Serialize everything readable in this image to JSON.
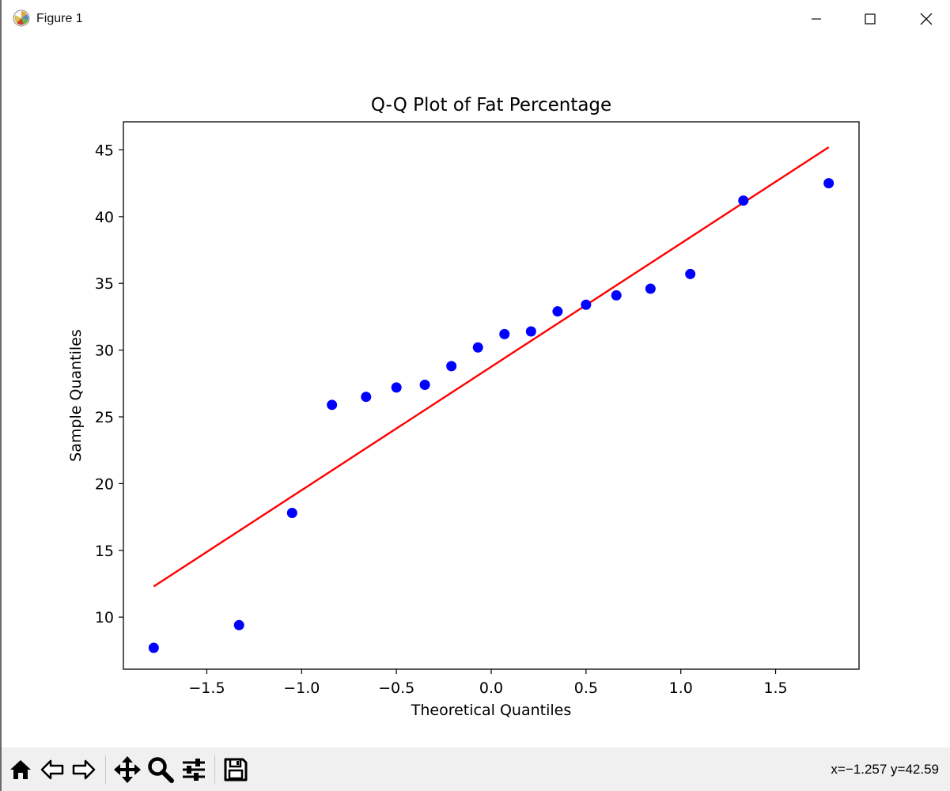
{
  "window": {
    "title": "Figure 1",
    "controls": {
      "minimize": "minimize-icon",
      "maximize": "maximize-icon",
      "close": "close-icon"
    }
  },
  "toolbar": {
    "buttons": [
      {
        "name": "home",
        "icon": "home-icon"
      },
      {
        "name": "back",
        "icon": "back-arrow-icon"
      },
      {
        "name": "forward",
        "icon": "forward-arrow-icon"
      },
      {
        "name": "pan",
        "icon": "move-icon"
      },
      {
        "name": "zoom",
        "icon": "zoom-icon"
      },
      {
        "name": "configure-subplots",
        "icon": "sliders-icon"
      },
      {
        "name": "save",
        "icon": "save-icon"
      }
    ],
    "coordinates": "x=−1.257 y=42.59"
  },
  "chart_data": {
    "type": "scatter",
    "title": "Q-Q Plot of Fat Percentage",
    "xlabel": "Theoretical Quantiles",
    "ylabel": "Sample Quantiles",
    "xlim": [
      -1.94,
      1.94
    ],
    "ylim": [
      6.1,
      47.1
    ],
    "xticks": [
      -1.5,
      -1.0,
      -0.5,
      0.0,
      0.5,
      1.0,
      1.5
    ],
    "xtick_labels": [
      "−1.5",
      "−1.0",
      "−0.5",
      "0.0",
      "0.5",
      "1.0",
      "1.5"
    ],
    "yticks": [
      10,
      15,
      20,
      25,
      30,
      35,
      40,
      45
    ],
    "ytick_labels": [
      "10",
      "15",
      "20",
      "25",
      "30",
      "35",
      "40",
      "45"
    ],
    "grid": false,
    "marker_color": "#0000ff",
    "line_color": "#ff0000",
    "points": [
      {
        "x": -1.78,
        "y": 7.7
      },
      {
        "x": -1.33,
        "y": 9.4
      },
      {
        "x": -1.05,
        "y": 17.8
      },
      {
        "x": -0.84,
        "y": 25.9
      },
      {
        "x": -0.66,
        "y": 26.5
      },
      {
        "x": -0.5,
        "y": 27.2
      },
      {
        "x": -0.35,
        "y": 27.4
      },
      {
        "x": -0.21,
        "y": 28.8
      },
      {
        "x": -0.07,
        "y": 30.2
      },
      {
        "x": 0.07,
        "y": 31.2
      },
      {
        "x": 0.21,
        "y": 31.4
      },
      {
        "x": 0.35,
        "y": 32.9
      },
      {
        "x": 0.5,
        "y": 33.4
      },
      {
        "x": 0.66,
        "y": 34.1
      },
      {
        "x": 0.84,
        "y": 34.6
      },
      {
        "x": 1.05,
        "y": 35.7
      },
      {
        "x": 1.33,
        "y": 41.2
      },
      {
        "x": 1.78,
        "y": 42.5
      }
    ],
    "fit_line": {
      "x1": -1.78,
      "y1": 12.3,
      "x2": 1.78,
      "y2": 45.2
    }
  }
}
